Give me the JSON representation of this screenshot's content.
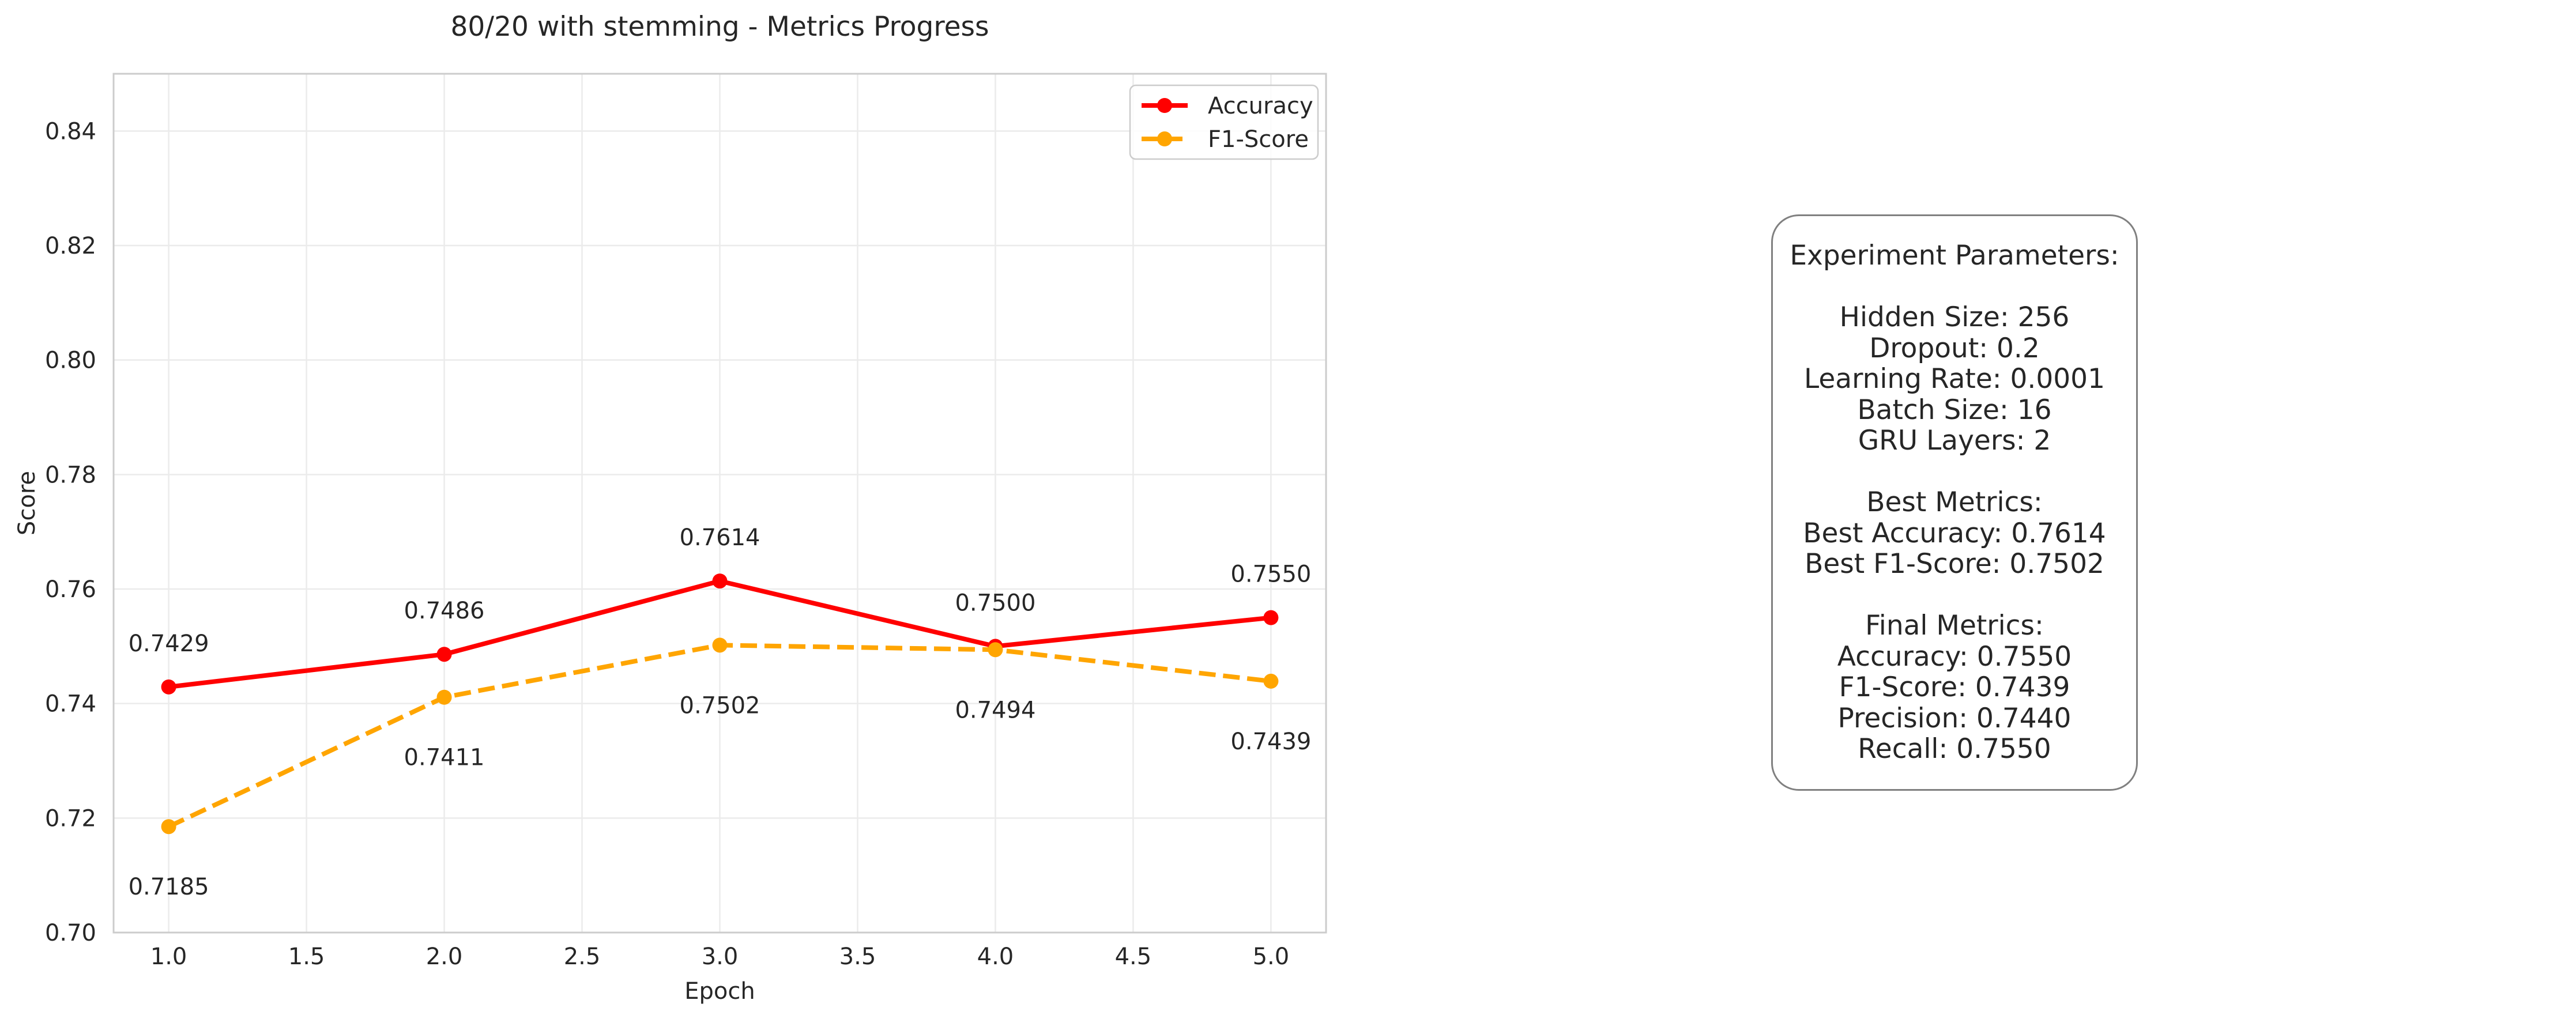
{
  "chart_data": {
    "type": "line",
    "title": "80/20 with stemming - Metrics Progress",
    "xlabel": "Epoch",
    "ylabel": "Score",
    "x": [
      1.0,
      2.0,
      3.0,
      4.0,
      5.0
    ],
    "xlim": [
      0.8,
      5.2
    ],
    "ylim": [
      0.7,
      0.85
    ],
    "xticks": [
      "1.0",
      "1.5",
      "2.0",
      "2.5",
      "3.0",
      "3.5",
      "4.0",
      "4.5",
      "5.0"
    ],
    "yticks": [
      "0.70",
      "0.72",
      "0.74",
      "0.76",
      "0.78",
      "0.80",
      "0.82",
      "0.84"
    ],
    "grid": true,
    "legend_position": "top-right",
    "series": [
      {
        "name": "Accuracy",
        "values": [
          0.7429,
          0.7486,
          0.7614,
          0.75,
          0.755
        ],
        "labels": [
          "0.7429",
          "0.7486",
          "0.7614",
          "0.7500",
          "0.7550"
        ],
        "color": "#ff0000",
        "line_style": "solid",
        "label_position": "above"
      },
      {
        "name": "F1-Score",
        "values": [
          0.7185,
          0.7411,
          0.7502,
          0.7494,
          0.7439
        ],
        "labels": [
          "0.7185",
          "0.7411",
          "0.7502",
          "0.7494",
          "0.7439"
        ],
        "color": "#ffa500",
        "line_style": "dashed",
        "label_position": "below"
      }
    ]
  },
  "params_box": {
    "lines": [
      "Experiment Parameters:",
      "",
      "Hidden Size: 256",
      "Dropout: 0.2",
      "Learning Rate: 0.0001",
      "Batch Size: 16",
      "GRU Layers: 2",
      "",
      "Best Metrics:",
      "Best Accuracy: 0.7614",
      "Best F1-Score: 0.7502",
      "",
      "Final Metrics:",
      "Accuracy: 0.7550",
      "F1-Score: 0.7439",
      "Precision: 0.7440",
      "Recall: 0.7550"
    ]
  }
}
